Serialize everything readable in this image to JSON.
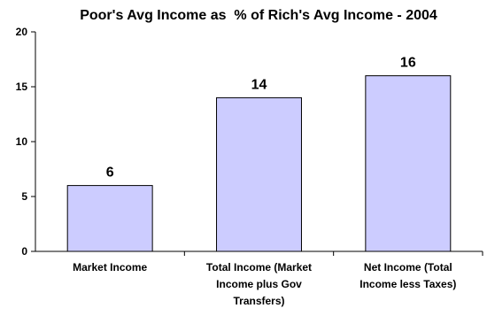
{
  "chart_data": {
    "type": "bar",
    "title": "Poor's Avg Income as  % of Rich's Avg Income - 2004",
    "categories": [
      [
        "Market Income"
      ],
      [
        "Total Income (Market",
        "Income plus Gov",
        "Transfers)"
      ],
      [
        "Net Income (Total",
        "Income less Taxes)"
      ]
    ],
    "values": [
      6,
      14,
      16
    ],
    "data_labels": [
      "6",
      "14",
      "16"
    ],
    "xlabel": "",
    "ylabel": "",
    "ylim": [
      0,
      20
    ],
    "yticks": [
      0,
      5,
      10,
      15,
      20
    ],
    "ytick_labels": [
      "0",
      "5",
      "10",
      "15",
      "20"
    ],
    "grid": false,
    "legend": "none",
    "bar_color": "#ccccff",
    "bar_edge_color": "#000000"
  }
}
